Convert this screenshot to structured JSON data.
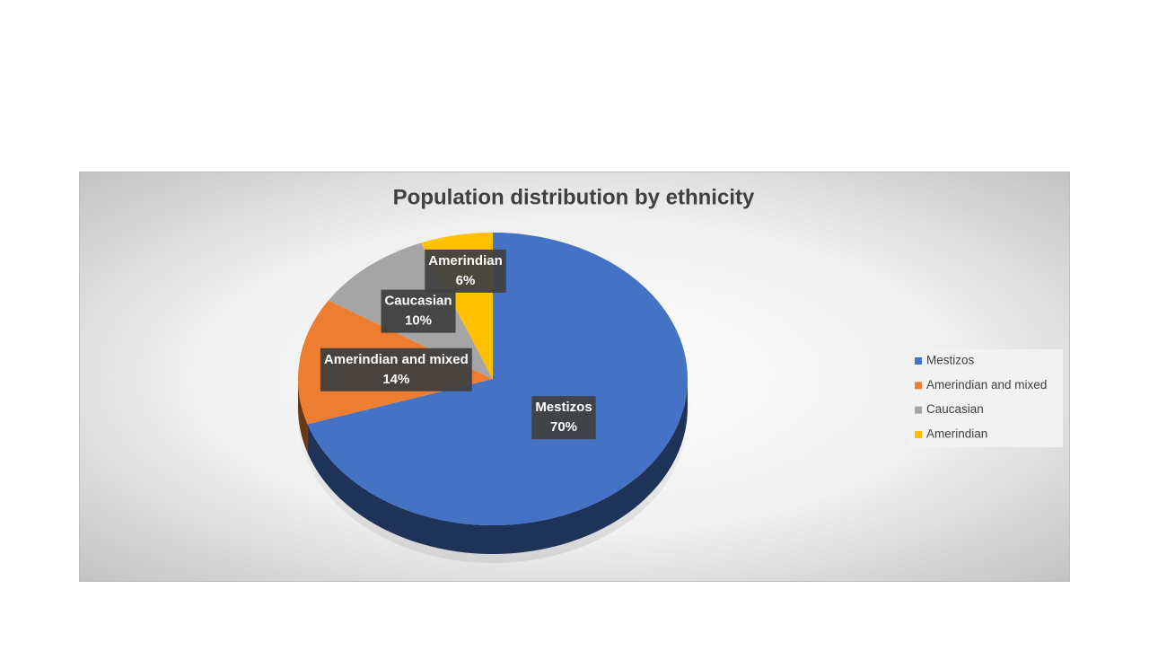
{
  "chart_data": {
    "type": "pie",
    "title": "Population distribution by ethnicity",
    "categories": [
      "Mestizos",
      "Amerindian and mixed",
      "Caucasian",
      "Amerindian"
    ],
    "values": [
      70,
      14,
      10,
      6
    ],
    "value_labels": [
      "70%",
      "14%",
      "10%",
      "6%"
    ],
    "colors": [
      "#4472c4",
      "#ed7d31",
      "#a5a5a5",
      "#ffc000"
    ],
    "legend": "right"
  }
}
